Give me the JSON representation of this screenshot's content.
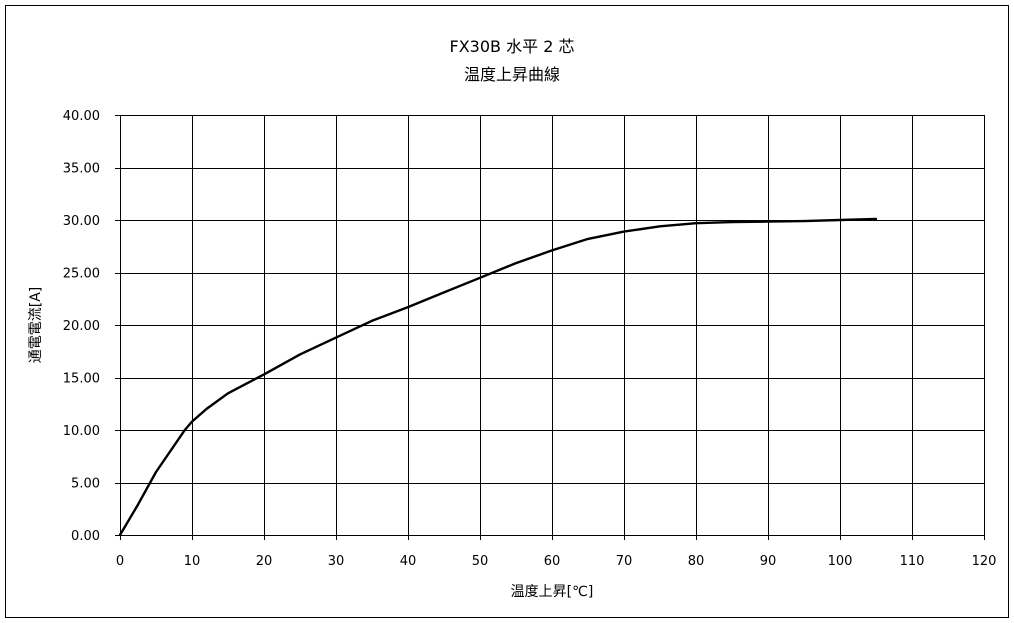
{
  "chart_data": {
    "type": "line",
    "title": "FX30B 水平 2 芯",
    "subtitle": "温度上昇曲線",
    "xlabel": "温度上昇[℃]",
    "ylabel": "通電電流[A]",
    "xlim": [
      0,
      120
    ],
    "ylim": [
      0,
      40
    ],
    "x_tick_labels": [
      "0",
      "10",
      "20",
      "30",
      "40",
      "50",
      "60",
      "70",
      "80",
      "90",
      "100",
      "110",
      "120"
    ],
    "y_tick_labels": [
      "0.00",
      "5.00",
      "10.00",
      "15.00",
      "20.00",
      "25.00",
      "30.00",
      "35.00",
      "40.00"
    ],
    "grid": true,
    "legend": "none",
    "series": [
      {
        "color": "#000000",
        "x": [
          0,
          2.5,
          5,
          7.5,
          9,
          10,
          12,
          15,
          20,
          25,
          30,
          35,
          40,
          45,
          50,
          55,
          60,
          65,
          70,
          75,
          80,
          85,
          90,
          95,
          100,
          105
        ],
        "y": [
          0,
          2.9,
          6.0,
          8.5,
          10.0,
          10.8,
          12.0,
          13.5,
          15.3,
          17.2,
          18.8,
          20.4,
          21.7,
          23.1,
          24.5,
          25.9,
          27.1,
          28.2,
          28.9,
          29.4,
          29.7,
          29.8,
          29.85,
          29.9,
          30.0,
          30.1
        ]
      }
    ]
  }
}
